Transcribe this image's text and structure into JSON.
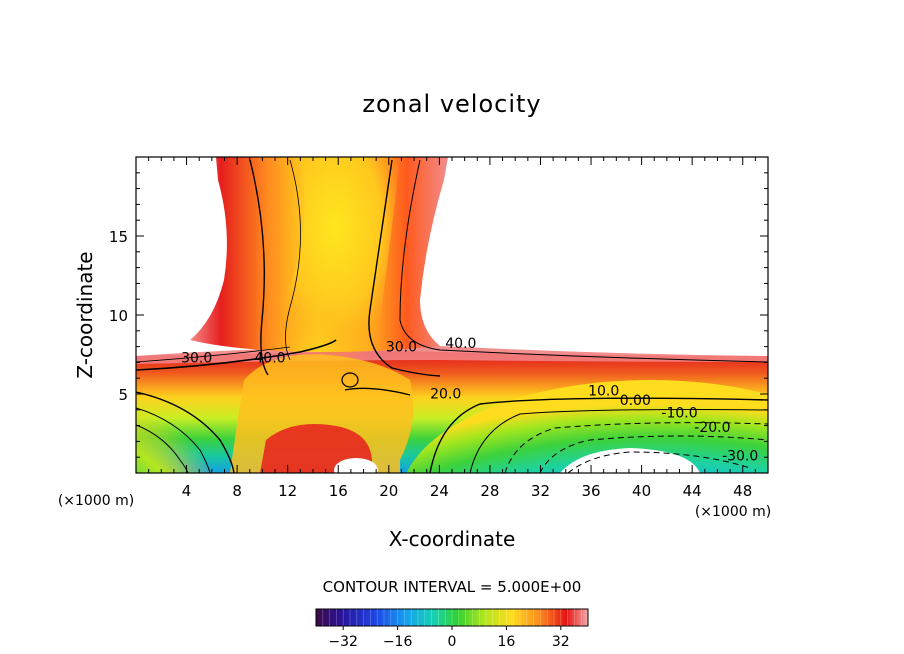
{
  "chart_data": {
    "type": "contour",
    "title": "zonal velocity",
    "xlabel": "X-coordinate",
    "ylabel": "Z-coordinate",
    "x_unit_label_left": "(×1000 m)",
    "x_unit_label_right": "(×1000 m)",
    "xlim": [
      0,
      50
    ],
    "ylim": [
      0,
      20
    ],
    "x_ticks": [
      4,
      8,
      12,
      16,
      20,
      24,
      28,
      32,
      36,
      40,
      44,
      48
    ],
    "y_ticks": [
      5,
      10,
      15
    ],
    "contour_interval_text": "CONTOUR INTERVAL = 5.000E+00",
    "colorbar": {
      "range": [
        -40,
        40
      ],
      "ticks": [
        -32,
        -16,
        0,
        16,
        32
      ]
    },
    "contour_labels": [
      {
        "text": "30.0",
        "x": 4.8,
        "y": 7.0
      },
      {
        "text": "40.0",
        "x": 10.6,
        "y": 7.0
      },
      {
        "text": "30.0",
        "x": 21.0,
        "y": 7.7
      },
      {
        "text": "40.0",
        "x": 25.7,
        "y": 7.9
      },
      {
        "text": "20.0",
        "x": 24.5,
        "y": 4.7
      },
      {
        "text": "10.0",
        "x": 37.0,
        "y": 4.9
      },
      {
        "text": "0.00",
        "x": 39.5,
        "y": 4.3
      },
      {
        "text": "-10.0",
        "x": 43.0,
        "y": 3.5
      },
      {
        "text": "-20.0",
        "x": 45.6,
        "y": 2.6
      },
      {
        "text": "-30.0",
        "x": 47.8,
        "y": 0.8
      }
    ]
  }
}
